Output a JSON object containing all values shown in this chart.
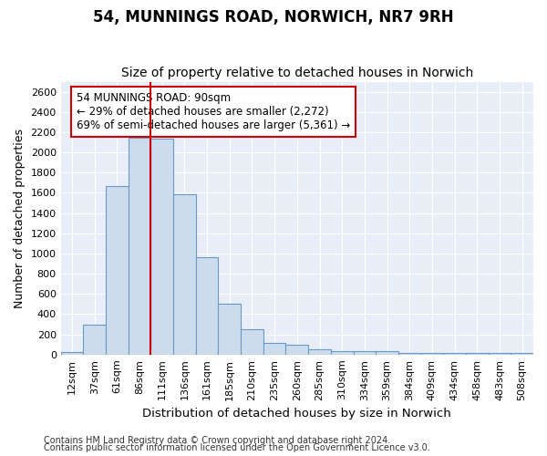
{
  "title": "54, MUNNINGS ROAD, NORWICH, NR7 9RH",
  "subtitle": "Size of property relative to detached houses in Norwich",
  "xlabel": "Distribution of detached houses by size in Norwich",
  "ylabel": "Number of detached properties",
  "categories": [
    "12sqm",
    "37sqm",
    "61sqm",
    "86sqm",
    "111sqm",
    "136sqm",
    "161sqm",
    "185sqm",
    "210sqm",
    "235sqm",
    "260sqm",
    "285sqm",
    "310sqm",
    "334sqm",
    "359sqm",
    "384sqm",
    "409sqm",
    "434sqm",
    "458sqm",
    "483sqm",
    "508sqm"
  ],
  "values": [
    25,
    300,
    1670,
    2150,
    2140,
    1590,
    960,
    500,
    250,
    120,
    100,
    50,
    30,
    30,
    30,
    20,
    20,
    20,
    20,
    15,
    20
  ],
  "bar_color": "#cddcec",
  "bar_edge_color": "#6699cc",
  "vline_color": "#cc0000",
  "vline_position": 3.5,
  "annotation_text": "54 MUNNINGS ROAD: 90sqm\n← 29% of detached houses are smaller (2,272)\n69% of semi-detached houses are larger (5,361) →",
  "annotation_box_facecolor": "#ffffff",
  "annotation_box_edgecolor": "#cc0000",
  "ylim": [
    0,
    2700
  ],
  "yticks": [
    0,
    200,
    400,
    600,
    800,
    1000,
    1200,
    1400,
    1600,
    1800,
    2000,
    2200,
    2400,
    2600
  ],
  "footer1": "Contains HM Land Registry data © Crown copyright and database right 2024.",
  "footer2": "Contains public sector information licensed under the Open Government Licence v3.0.",
  "bg_color": "#ffffff",
  "plot_bg_color": "#e8eef8",
  "grid_color": "#ffffff",
  "title_fontsize": 12,
  "subtitle_fontsize": 10,
  "axis_label_fontsize": 9,
  "tick_fontsize": 8,
  "annotation_fontsize": 8.5,
  "footer_fontsize": 7
}
